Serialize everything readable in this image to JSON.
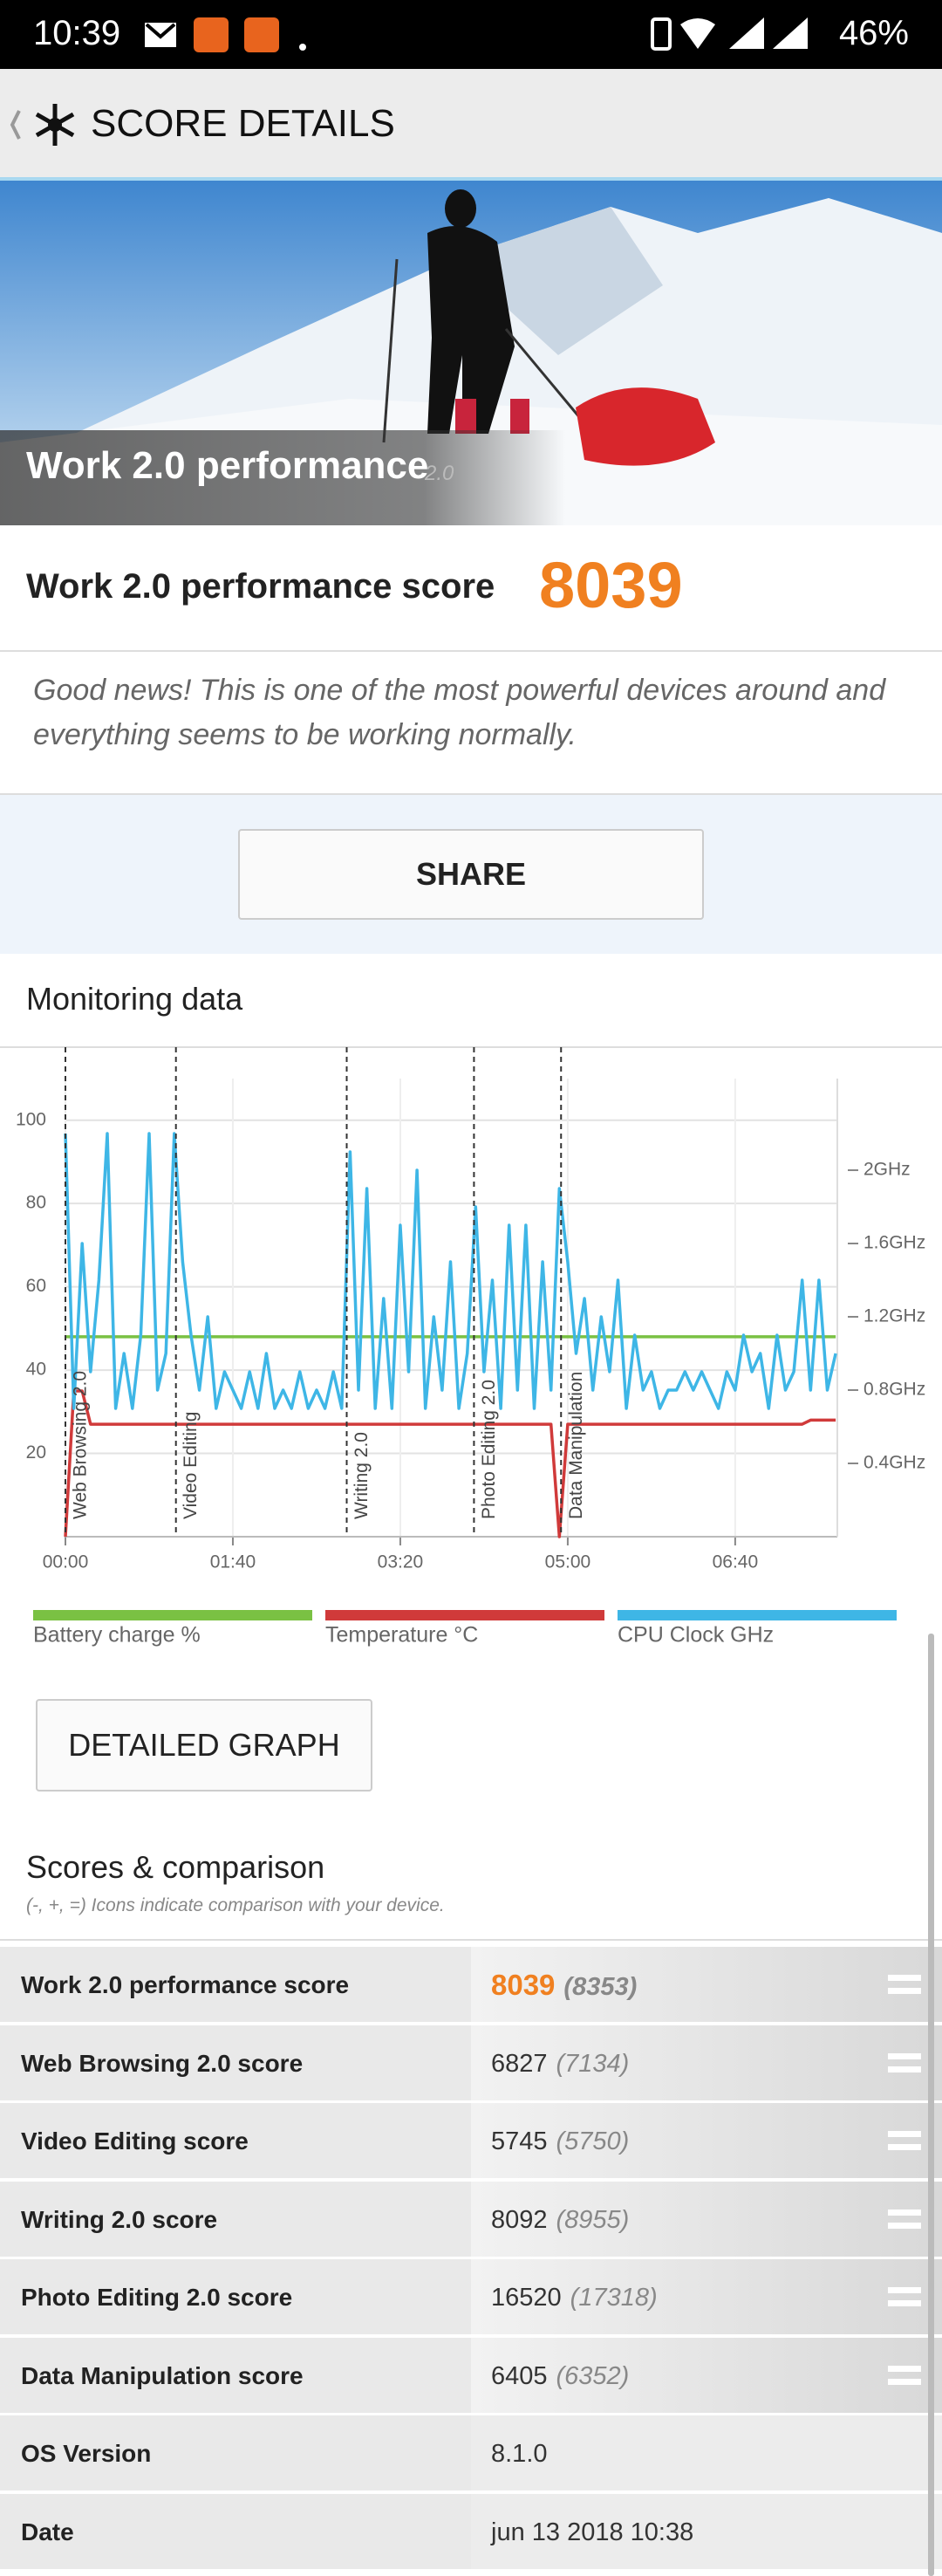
{
  "status_bar": {
    "time": "10:39",
    "battery": "46%"
  },
  "header": {
    "title": "SCORE DETAILS"
  },
  "hero": {
    "title": "Work 2.0 performance",
    "version": "2.0"
  },
  "score": {
    "label": "Work 2.0 performance score",
    "value": 8039
  },
  "message": "Good news! This is one of the most powerful devices around and everything seems to be working normally.",
  "share_button": "SHARE",
  "monitoring": {
    "title": "Monitoring data"
  },
  "chart_data": {
    "type": "line",
    "x": [
      0,
      5,
      10,
      15,
      20,
      25,
      30,
      35,
      40,
      45,
      50,
      55,
      60,
      65,
      70,
      75,
      80,
      85,
      90,
      95,
      100,
      105,
      110,
      115,
      120,
      125,
      130,
      135,
      140,
      145,
      150,
      155,
      160,
      165,
      170,
      175,
      180,
      185,
      190,
      195,
      200,
      205,
      210,
      215,
      220,
      225,
      230,
      235,
      240,
      245,
      250,
      255,
      260,
      265,
      270,
      275,
      280,
      285,
      290,
      295,
      300,
      305,
      310,
      315,
      320,
      325,
      330,
      335,
      340,
      345,
      350,
      355,
      360,
      365,
      370,
      375,
      380,
      385,
      390,
      395,
      400,
      405,
      410,
      415,
      420,
      425,
      430,
      435,
      440,
      445,
      450,
      455,
      460
    ],
    "series": [
      {
        "name": "Battery charge %",
        "color": "#7ac143",
        "values": [
          48,
          48,
          48,
          48,
          48,
          48,
          48,
          48,
          48,
          48,
          48,
          48,
          48,
          48,
          48,
          48,
          48,
          48,
          48,
          48,
          48,
          48,
          48,
          48,
          48,
          48,
          48,
          48,
          48,
          48,
          48,
          48,
          48,
          48,
          48,
          48,
          48,
          48,
          48,
          48,
          48,
          48,
          48,
          48,
          48,
          48,
          48,
          48,
          48,
          48,
          48,
          48,
          48,
          48,
          48,
          48,
          48,
          48,
          48,
          48,
          48,
          48,
          48,
          48,
          48,
          48,
          48,
          48,
          48,
          48,
          48,
          48,
          48,
          48,
          48,
          48,
          48,
          48,
          48,
          48,
          48,
          48,
          48,
          48,
          48,
          48,
          48,
          48,
          48,
          48,
          48,
          48,
          48
        ]
      },
      {
        "name": "Temperature °C",
        "color": "#d03a3a",
        "values": [
          0,
          35,
          35,
          27,
          27,
          27,
          27,
          27,
          27,
          27,
          27,
          27,
          27,
          27,
          27,
          27,
          27,
          27,
          27,
          27,
          27,
          27,
          27,
          27,
          27,
          27,
          27,
          27,
          27,
          27,
          27,
          27,
          27,
          27,
          27,
          27,
          27,
          27,
          27,
          27,
          27,
          27,
          27,
          27,
          27,
          27,
          27,
          27,
          27,
          27,
          27,
          27,
          27,
          27,
          27,
          27,
          27,
          27,
          27,
          0,
          27,
          27,
          27,
          27,
          27,
          27,
          27,
          27,
          27,
          27,
          27,
          27,
          27,
          27,
          27,
          27,
          27,
          27,
          27,
          27,
          27,
          27,
          27,
          27,
          27,
          27,
          27,
          27,
          27,
          28,
          28,
          28,
          28
        ]
      },
      {
        "name": "CPU Clock GHz",
        "color": "#3eb6e6",
        "axis": "y2",
        "values": [
          2.2,
          0.7,
          1.6,
          0.9,
          1.4,
          2.2,
          0.7,
          1.0,
          0.7,
          1.1,
          2.2,
          0.8,
          1.0,
          2.2,
          1.5,
          1.1,
          0.8,
          1.2,
          0.7,
          0.9,
          0.8,
          0.7,
          0.9,
          0.7,
          1.0,
          0.7,
          0.8,
          0.7,
          0.9,
          0.7,
          0.8,
          0.7,
          0.9,
          0.7,
          2.1,
          0.8,
          1.9,
          0.7,
          1.3,
          0.7,
          1.7,
          0.9,
          2.0,
          0.7,
          1.2,
          0.8,
          1.5,
          0.7,
          1.0,
          1.8,
          0.9,
          1.4,
          0.7,
          1.7,
          0.8,
          1.7,
          0.7,
          1.5,
          0.8,
          1.9,
          1.5,
          1.0,
          1.3,
          0.8,
          1.2,
          0.9,
          1.4,
          0.7,
          1.1,
          0.8,
          0.9,
          0.7,
          0.8,
          0.8,
          0.9,
          0.8,
          0.9,
          0.8,
          0.7,
          0.9,
          0.8,
          1.1,
          0.9,
          1.0,
          0.7,
          1.1,
          0.8,
          0.9,
          1.4,
          0.8,
          1.4,
          0.8,
          1.0
        ]
      }
    ],
    "xlim": [
      0,
      461
    ],
    "xticks": [
      {
        "value": 0,
        "label": "00:00"
      },
      {
        "value": 100,
        "label": "01:40"
      },
      {
        "value": 200,
        "label": "03:20"
      },
      {
        "value": 300,
        "label": "05:00"
      },
      {
        "value": 400,
        "label": "06:40"
      }
    ],
    "ylim": [
      0,
      110
    ],
    "yticks": [
      20,
      40,
      60,
      80,
      100
    ],
    "y2lim": [
      0,
      2.5
    ],
    "y2ticks": [
      {
        "value": 0.4,
        "label": "0.4GHz"
      },
      {
        "value": 0.8,
        "label": "0.8GHz"
      },
      {
        "value": 1.2,
        "label": "1.2GHz"
      },
      {
        "value": 1.6,
        "label": "1.6GHz"
      },
      {
        "value": 2,
        "label": "2GHz"
      }
    ],
    "grid": true,
    "annotations": [
      {
        "x": 0,
        "text": "Web Browsing 2.0"
      },
      {
        "x": 66,
        "text": "Video Editing"
      },
      {
        "x": 168,
        "text": "Writing 2.0"
      },
      {
        "x": 244,
        "text": "Photo Editing 2.0"
      },
      {
        "x": 296,
        "text": "Data Manipulation"
      }
    ]
  },
  "detailed_graph_button": "DETAILED GRAPH",
  "scores": {
    "title": "Scores & comparison",
    "note": "(-, +, =) Icons indicate comparison with your device.",
    "rows": [
      {
        "label": "Work 2.0 performance score",
        "value": 8039,
        "comparison": "(8353)"
      },
      {
        "label": "Web Browsing 2.0 score",
        "value": 6827,
        "comparison": "(7134)"
      },
      {
        "label": "Video Editing score",
        "value": 5745,
        "comparison": "(5750)"
      },
      {
        "label": "Writing 2.0 score",
        "value": 8092,
        "comparison": "(8955)"
      },
      {
        "label": "Photo Editing 2.0 score",
        "value": 16520,
        "comparison": "(17318)"
      },
      {
        "label": "Data Manipulation score",
        "value": 6405,
        "comparison": "(6352)"
      },
      {
        "label": "OS Version",
        "value": "8.1.0"
      },
      {
        "label": "Date",
        "value": "jun 13 2018 10:38"
      }
    ]
  }
}
